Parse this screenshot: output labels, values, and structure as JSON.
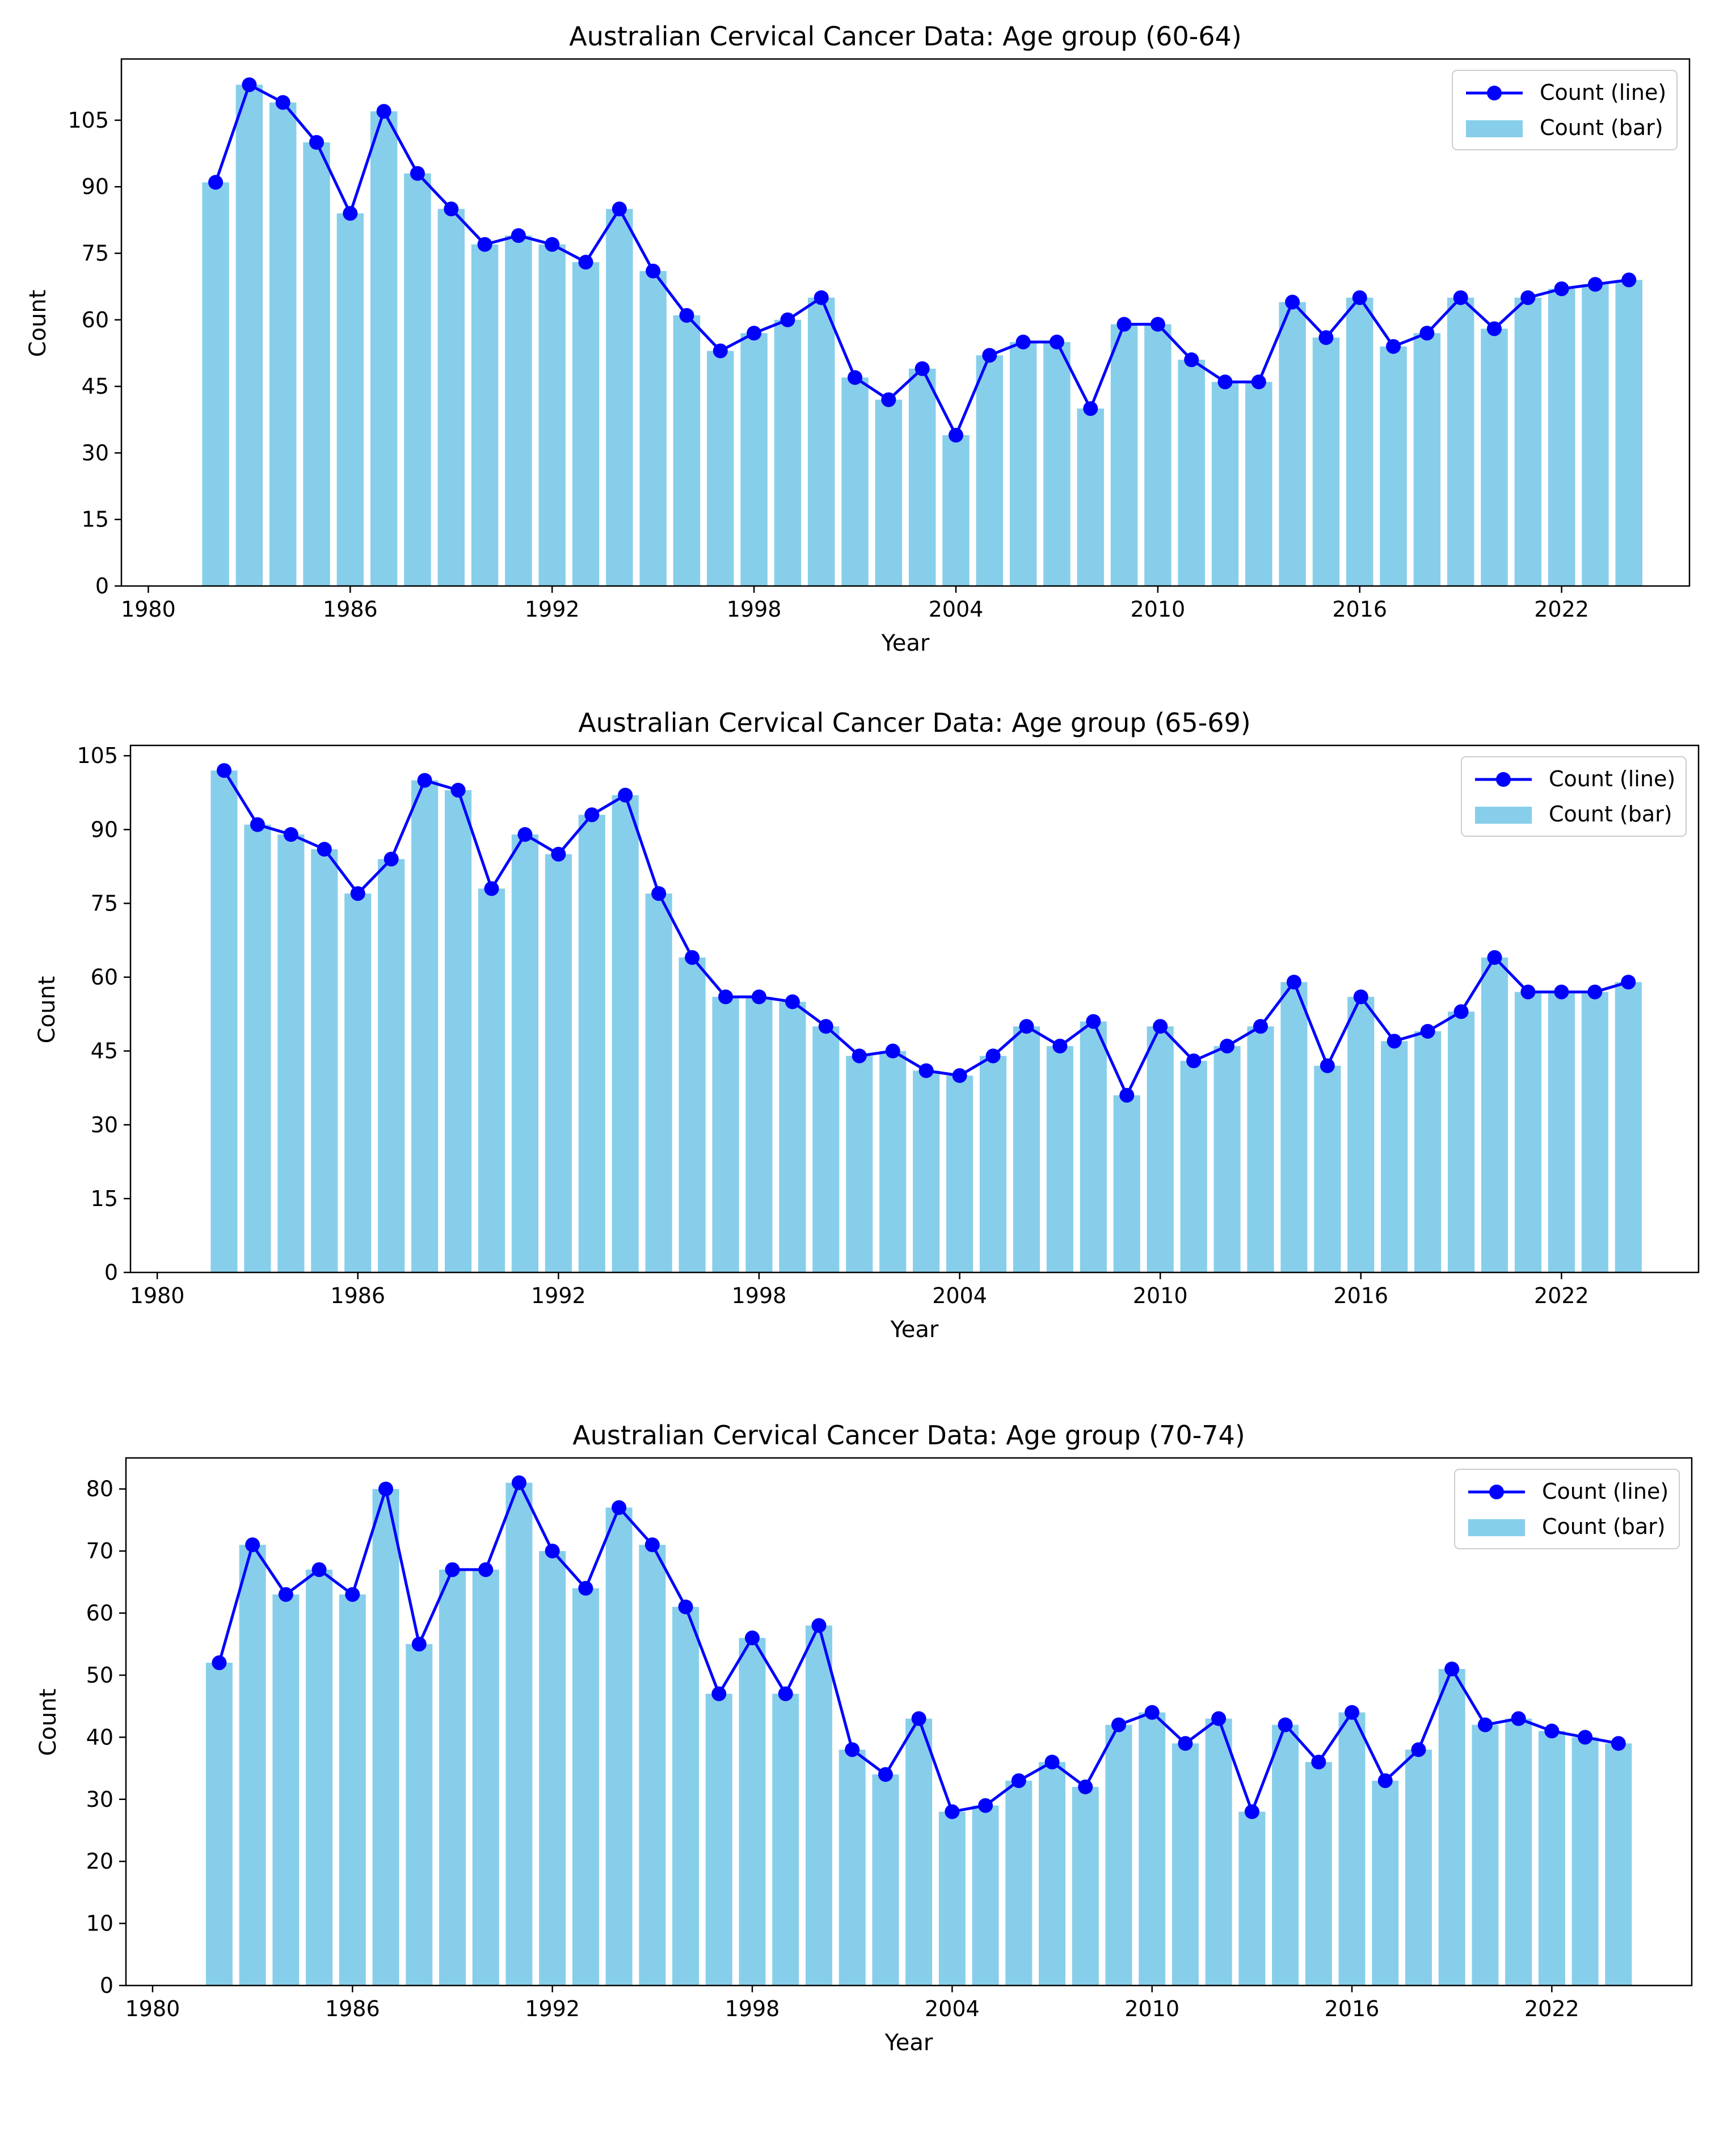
{
  "colors": {
    "bar": "#87CEEB",
    "line": "#0000FF",
    "axis": "#000000",
    "background": "#FFFFFF",
    "legend_border": "#CCCCCC"
  },
  "chart_data": [
    {
      "type": "bar+line",
      "title": "Australian Cervical Cancer Data: Age group (60-64)",
      "xlabel": "Year",
      "ylabel": "Count",
      "xlim": [
        1979.2,
        2025.8
      ],
      "ylim": [
        0,
        118.8
      ],
      "xticks": [
        1980,
        1986,
        1992,
        1998,
        2004,
        2010,
        2016,
        2022
      ],
      "yticks": [
        0,
        15,
        30,
        45,
        60,
        75,
        90,
        105
      ],
      "legend": {
        "position": "top-right",
        "entries": [
          "Count (line)",
          "Count (bar)"
        ]
      },
      "x": [
        1982,
        1983,
        1984,
        1985,
        1986,
        1987,
        1988,
        1989,
        1990,
        1991,
        1992,
        1993,
        1994,
        1995,
        1996,
        1997,
        1998,
        1999,
        2000,
        2001,
        2002,
        2003,
        2004,
        2005,
        2006,
        2007,
        2008,
        2009,
        2010,
        2011,
        2012,
        2013,
        2014,
        2015,
        2016,
        2017,
        2018,
        2019,
        2020,
        2021,
        2022,
        2023,
        2024
      ],
      "values": [
        91,
        113,
        109,
        100,
        84,
        107,
        93,
        85,
        77,
        79,
        77,
        73,
        85,
        71,
        61,
        53,
        57,
        60,
        65,
        47,
        42,
        49,
        34,
        52,
        55,
        55,
        40,
        59,
        59,
        51,
        46,
        46,
        64,
        56,
        65,
        54,
        57,
        65,
        58,
        65,
        67,
        68,
        69
      ]
    },
    {
      "type": "bar+line",
      "title": "Australian Cervical Cancer Data: Age group (65-69)",
      "xlabel": "Year",
      "ylabel": "Count",
      "xlim": [
        1979.2,
        2026.1
      ],
      "ylim": [
        0,
        107.1
      ],
      "xticks": [
        1980,
        1986,
        1992,
        1998,
        2004,
        2010,
        2016,
        2022
      ],
      "yticks": [
        0,
        15,
        30,
        45,
        60,
        75,
        90,
        105
      ],
      "legend": {
        "position": "top-right",
        "entries": [
          "Count (line)",
          "Count (bar)"
        ]
      },
      "x": [
        1982,
        1983,
        1984,
        1985,
        1986,
        1987,
        1988,
        1989,
        1990,
        1991,
        1992,
        1993,
        1994,
        1995,
        1996,
        1997,
        1998,
        1999,
        2000,
        2001,
        2002,
        2003,
        2004,
        2005,
        2006,
        2007,
        2008,
        2009,
        2010,
        2011,
        2012,
        2013,
        2014,
        2015,
        2016,
        2017,
        2018,
        2019,
        2020,
        2021,
        2022,
        2023,
        2024
      ],
      "values": [
        102,
        91,
        89,
        86,
        77,
        84,
        100,
        98,
        78,
        89,
        85,
        93,
        97,
        77,
        64,
        56,
        56,
        55,
        50,
        44,
        45,
        41,
        40,
        44,
        50,
        46,
        51,
        36,
        50,
        43,
        46,
        50,
        59,
        42,
        56,
        47,
        49,
        53,
        64,
        57,
        57,
        57,
        59
      ]
    },
    {
      "type": "bar+line",
      "title": "Australian Cervical Cancer Data: Age group (70-74)",
      "xlabel": "Year",
      "ylabel": "Count",
      "xlim": [
        1979.2,
        2026.2
      ],
      "ylim": [
        0,
        85
      ],
      "xticks": [
        1980,
        1986,
        1992,
        1998,
        2004,
        2010,
        2016,
        2022
      ],
      "yticks": [
        0,
        10,
        20,
        30,
        40,
        50,
        60,
        70,
        80
      ],
      "legend": {
        "position": "top-right",
        "entries": [
          "Count (line)",
          "Count (bar)"
        ]
      },
      "x": [
        1982,
        1983,
        1984,
        1985,
        1986,
        1987,
        1988,
        1989,
        1990,
        1991,
        1992,
        1993,
        1994,
        1995,
        1996,
        1997,
        1998,
        1999,
        2000,
        2001,
        2002,
        2003,
        2004,
        2005,
        2006,
        2007,
        2008,
        2009,
        2010,
        2011,
        2012,
        2013,
        2014,
        2015,
        2016,
        2017,
        2018,
        2019,
        2020,
        2021,
        2022,
        2023,
        2024
      ],
      "values": [
        52,
        71,
        63,
        67,
        63,
        80,
        55,
        67,
        67,
        81,
        70,
        64,
        77,
        71,
        61,
        47,
        56,
        47,
        58,
        38,
        34,
        43,
        28,
        29,
        33,
        36,
        32,
        42,
        44,
        39,
        43,
        28,
        42,
        36,
        44,
        33,
        38,
        51,
        42,
        43,
        41,
        40,
        39
      ]
    }
  ]
}
